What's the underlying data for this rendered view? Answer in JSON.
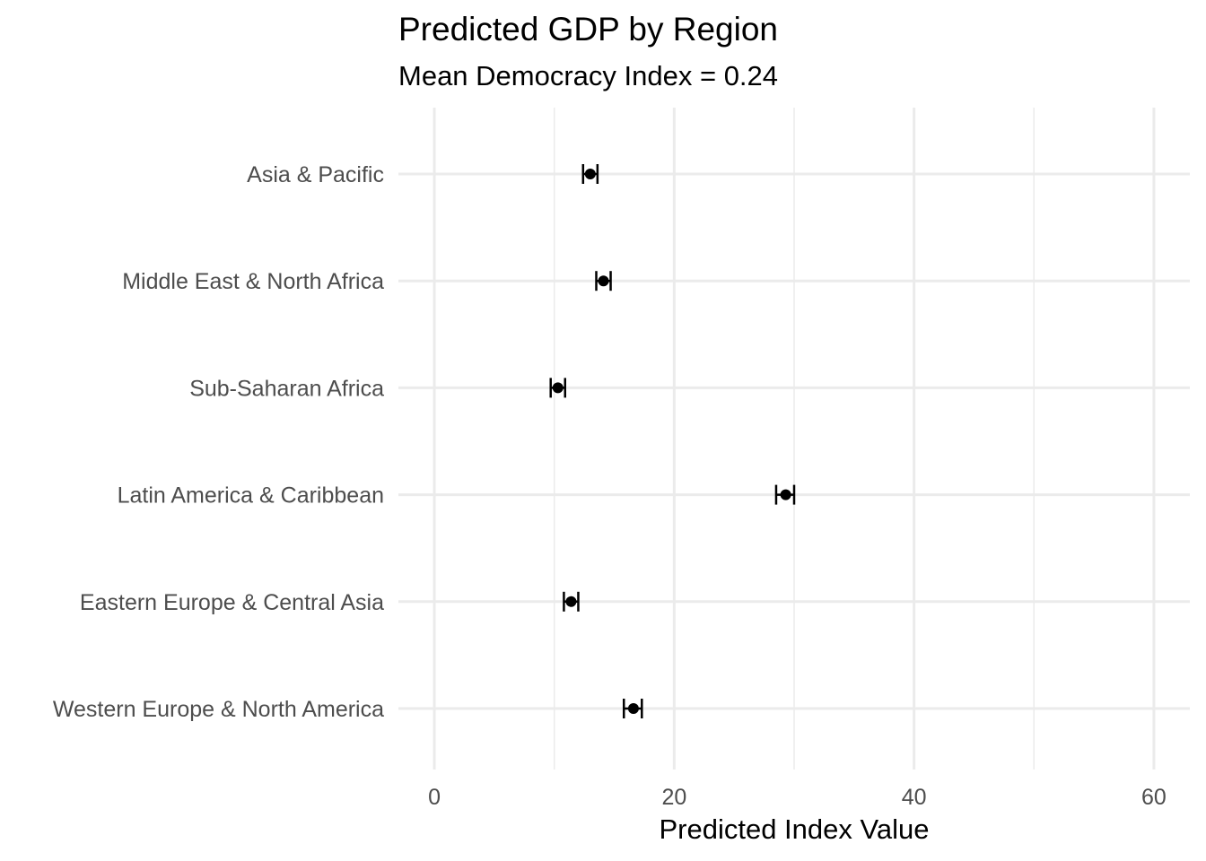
{
  "chart_data": {
    "type": "scatter",
    "title": "Predicted GDP by Region",
    "subtitle": "Mean Democracy Index = 0.24",
    "xlabel": "Predicted Index Value",
    "ylabel": "",
    "xlim": [
      -3,
      63
    ],
    "xticks": [
      0,
      20,
      40,
      60
    ],
    "grid": true,
    "categories": [
      "Asia & Pacific",
      "Middle East & North Africa",
      "Sub-Saharan Africa",
      "Latin America & Caribbean",
      "Eastern Europe & Central Asia",
      "Western Europe & North America"
    ],
    "estimates": [
      13.0,
      14.1,
      10.3,
      29.3,
      11.4,
      16.6
    ],
    "lower": [
      12.4,
      13.5,
      9.7,
      28.5,
      10.8,
      15.8
    ],
    "upper": [
      13.6,
      14.7,
      10.9,
      30.0,
      12.0,
      17.3
    ],
    "colors": {
      "point": "#000000",
      "grid": "#ebebeb"
    }
  }
}
